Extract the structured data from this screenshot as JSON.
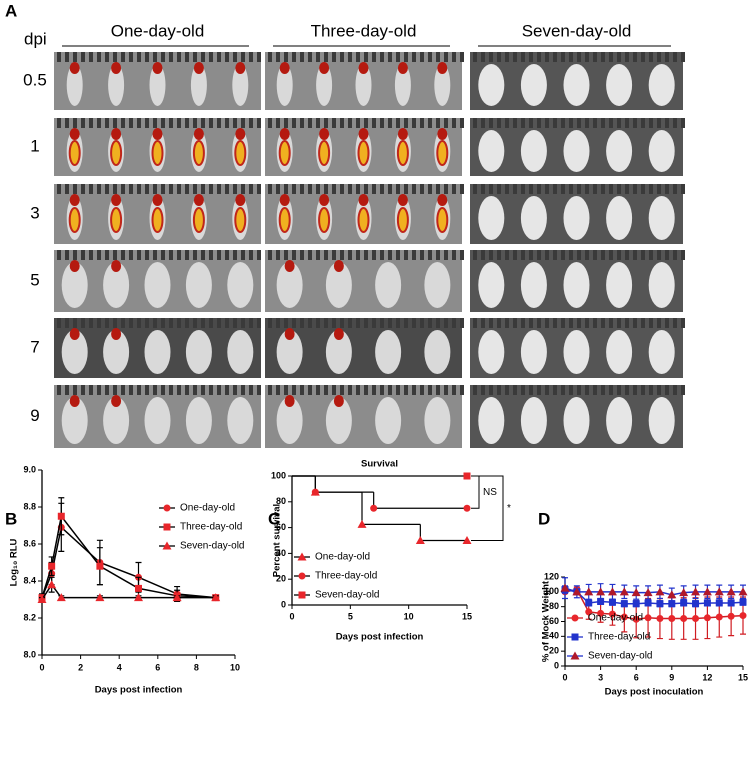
{
  "panel_a": {
    "label": "A",
    "row_header": "dpi",
    "columns": [
      "One-day-old",
      "Three-day-old",
      "Seven-day-old"
    ],
    "rows": [
      0.5,
      1,
      3,
      5,
      7,
      9
    ]
  },
  "chart_data": [
    {
      "type": "line",
      "panel": "B",
      "ylabel": "Log₁₀ RLU",
      "xlabel": "Days post infection",
      "xlim": [
        0,
        10
      ],
      "xticks": [
        0,
        2,
        4,
        6,
        8,
        10
      ],
      "ylim": [
        8,
        9
      ],
      "yticks": [
        {
          "value": 8,
          "label": "8.0"
        },
        8.2,
        8.4,
        8.6,
        8.8,
        {
          "value": 9,
          "label": "9.0"
        }
      ],
      "legend": "upper right",
      "x": [
        0,
        0.5,
        1,
        3,
        5,
        7,
        9
      ],
      "series": [
        {
          "name": "One-day-old",
          "marker": "circle",
          "color": "#e8262b",
          "line_color": "#000000",
          "values": [
            8.31,
            8.44,
            8.69,
            8.5,
            8.42,
            8.33,
            8.31
          ],
          "errors": [
            0.02,
            0.06,
            0.13,
            0.12,
            0.08,
            0.04,
            0.01
          ]
        },
        {
          "name": "Three-day-old",
          "marker": "square",
          "color": "#e8262b",
          "line_color": "#000000",
          "values": [
            8.31,
            8.48,
            8.75,
            8.48,
            8.36,
            8.32,
            8.31
          ],
          "errors": [
            0.02,
            0.05,
            0.1,
            0.1,
            0.06,
            0.03,
            0.01
          ]
        },
        {
          "name": "Seven-day-old",
          "marker": "triangle",
          "color": "#e8262b",
          "line_color": "#000000",
          "values": [
            8.3,
            8.38,
            8.31,
            8.31,
            8.31,
            8.31,
            8.31
          ],
          "errors": [
            0.01,
            0.04,
            0.01,
            0.01,
            0.01,
            0.01,
            0.01
          ]
        }
      ]
    },
    {
      "type": "step",
      "panel": "C",
      "title": "Survival",
      "ylabel": "Percent survival",
      "xlabel": "Days post infection",
      "xlim": [
        0,
        15
      ],
      "xticks": [
        0,
        5,
        10,
        15
      ],
      "ylim": [
        0,
        100
      ],
      "yticks": [
        0,
        20,
        40,
        60,
        80,
        100
      ],
      "legend": "lower left",
      "annotations": [
        "NS",
        "*"
      ],
      "series": [
        {
          "name": "One-day-old",
          "marker": "triangle",
          "color": "#e8262b",
          "line_color": "#000000",
          "x": [
            0,
            2,
            6,
            11,
            15
          ],
          "values": [
            100,
            87.5,
            62.5,
            50,
            50
          ]
        },
        {
          "name": "Three-day-old",
          "marker": "circle",
          "color": "#e8262b",
          "line_color": "#000000",
          "x": [
            0,
            2,
            7,
            15
          ],
          "values": [
            100,
            87.5,
            75,
            75
          ]
        },
        {
          "name": "Seven-day-old",
          "marker": "square",
          "color": "#e8262b",
          "line_color": "#000000",
          "x": [
            0,
            15
          ],
          "values": [
            100,
            100
          ]
        }
      ]
    },
    {
      "type": "line",
      "panel": "D",
      "ylabel": "% of Mock Weight",
      "xlabel": "Days post inoculation",
      "xlim": [
        0,
        15
      ],
      "xticks": [
        0,
        3,
        6,
        9,
        12,
        15
      ],
      "ylim": [
        0,
        120
      ],
      "yticks": [
        0,
        20,
        40,
        60,
        80,
        100,
        120
      ],
      "legend": "lower left",
      "x": [
        0,
        1,
        2,
        3,
        4,
        5,
        6,
        7,
        8,
        9,
        10,
        11,
        12,
        13,
        14,
        15
      ],
      "series": [
        {
          "name": "One-day-old",
          "marker": "circle",
          "color": "#e8262b",
          "line_color": "#d01c22",
          "values": [
            100,
            103,
            73,
            71,
            70,
            66,
            63,
            65,
            64,
            64,
            64,
            64,
            65,
            66,
            67,
            68
          ],
          "errors": [
            2,
            3,
            10,
            12,
            15,
            20,
            25,
            26,
            27,
            28,
            28,
            28,
            28,
            27,
            26,
            25
          ]
        },
        {
          "name": "Three-day-old",
          "marker": "square",
          "color": "#2233cc",
          "line_color": "#2233cc",
          "values": [
            103,
            100,
            85,
            87,
            86,
            84,
            84,
            85,
            84,
            84,
            85,
            84,
            85,
            85,
            85,
            86
          ],
          "errors": [
            5,
            4,
            4,
            4,
            4,
            4,
            4,
            4,
            4,
            4,
            4,
            4,
            4,
            4,
            4,
            4
          ]
        },
        {
          "name": "Seven-day-old",
          "marker": "triangle",
          "color": "#b0182a",
          "line_color": "#2233cc",
          "values": [
            105,
            100,
            100,
            100,
            100,
            100,
            99,
            99,
            100,
            96,
            99,
            100,
            100,
            100,
            100,
            100
          ],
          "errors": [
            14,
            8,
            10,
            11,
            10,
            9,
            9,
            9,
            9,
            9,
            9,
            9,
            9,
            9,
            9,
            9
          ]
        }
      ]
    }
  ]
}
